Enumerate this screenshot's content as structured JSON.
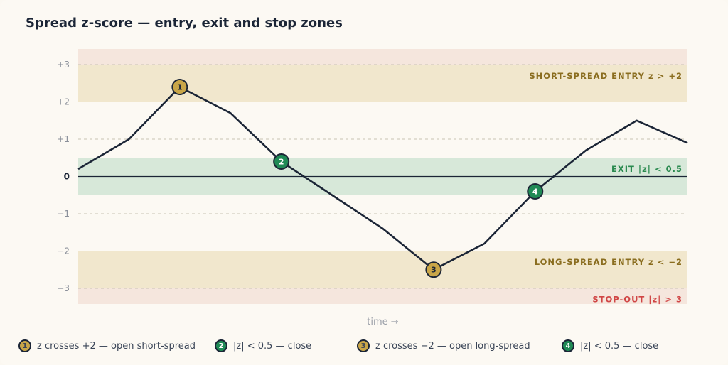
{
  "title": "Spread z-score — entry, exit and stop zones",
  "colors": {
    "background": "#fcf9f3",
    "stop_zone": "#f5e6dd",
    "entry_zone": "#f1e7cd",
    "exit_zone": "#d7e8d9",
    "line": "#1b2536",
    "gold": "#c9a648",
    "green": "#1f8a55",
    "entry_text": "#8a6d1f",
    "exit_text": "#2a8a4f",
    "stop_text": "#d04545"
  },
  "chart_data": {
    "type": "line",
    "title": "Spread z-score — entry, exit and stop zones",
    "xlabel": "time →",
    "ylabel": "",
    "ylim": [
      -3.42,
      3.42
    ],
    "y_ticks": [
      {
        "value": 3,
        "label": "+3"
      },
      {
        "value": 2,
        "label": "+2"
      },
      {
        "value": 1,
        "label": "+1"
      },
      {
        "value": 0,
        "label": "0"
      },
      {
        "value": -1,
        "label": "−1"
      },
      {
        "value": -2,
        "label": "−2"
      },
      {
        "value": -3,
        "label": "−3"
      }
    ],
    "series": [
      {
        "x": [
          0,
          1,
          2,
          3,
          4,
          5,
          6,
          7,
          8,
          9,
          10,
          11,
          12
        ],
        "values": [
          0.2,
          1.0,
          2.4,
          1.7,
          0.4,
          -0.5,
          -1.4,
          -2.5,
          -1.8,
          -0.4,
          0.7,
          1.5,
          0.9
        ]
      }
    ],
    "zones": [
      {
        "from": 2,
        "to": 3.42,
        "fill": "stop_zone"
      },
      {
        "from": -3.42,
        "to": -2,
        "fill": "stop_zone"
      },
      {
        "from": 2,
        "to": 3,
        "fill": "entry_zone"
      },
      {
        "from": -3,
        "to": -2,
        "fill": "entry_zone"
      },
      {
        "from": -0.5,
        "to": 0.5,
        "fill": "exit_zone"
      }
    ],
    "zone_labels": [
      {
        "text": "SHORT-SPREAD ENTRY z > +2",
        "y": 2.7,
        "color": "entry_text"
      },
      {
        "text": "EXIT |z| < 0.5",
        "y": 0.2,
        "color": "exit_text"
      },
      {
        "text": "LONG-SPREAD ENTRY z < −2",
        "y": -2.3,
        "color": "entry_text"
      },
      {
        "text": "STOP-OUT |z| > 3",
        "y": -3.3,
        "color": "stop_text"
      }
    ],
    "markers": [
      {
        "label": "1",
        "x": 2,
        "y": 2.4,
        "color": "gold"
      },
      {
        "label": "2",
        "x": 4,
        "y": 0.4,
        "color": "green"
      },
      {
        "label": "3",
        "x": 7,
        "y": -2.5,
        "color": "gold"
      },
      {
        "label": "4",
        "x": 9,
        "y": -0.4,
        "color": "green"
      }
    ]
  },
  "legend": [
    {
      "badge": "1",
      "text": "z crosses +2 — open short-spread",
      "color": "gold"
    },
    {
      "badge": "2",
      "text": "|z| < 0.5 — close",
      "color": "green"
    },
    {
      "badge": "3",
      "text": "z crosses −2 — open long-spread",
      "color": "gold"
    },
    {
      "badge": "4",
      "text": "|z| < 0.5 — close",
      "color": "green"
    }
  ]
}
